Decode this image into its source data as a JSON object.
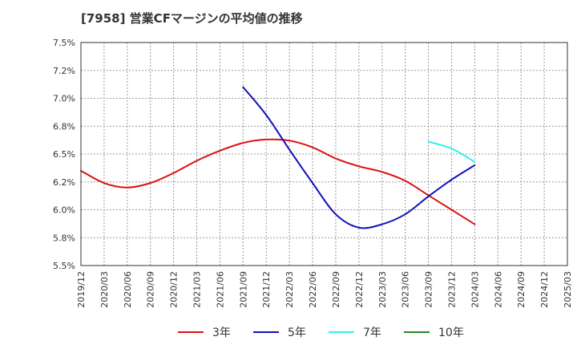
{
  "chart_data": {
    "type": "line",
    "title": "[7958]  営業CFマージンの平均値の推移",
    "xlabel": "",
    "ylabel": "",
    "x": [
      "2019/12",
      "2020/03",
      "2020/06",
      "2020/09",
      "2020/12",
      "2021/03",
      "2021/06",
      "2021/09",
      "2021/12",
      "2022/03",
      "2022/06",
      "2022/09",
      "2022/12",
      "2023/03",
      "2023/06",
      "2023/09",
      "2023/12",
      "2024/03",
      "2024/06",
      "2024/09",
      "2024/12",
      "2025/03"
    ],
    "y_ticks": [
      "7.5%",
      "7.2%",
      "7.0%",
      "6.8%",
      "6.5%",
      "6.2%",
      "6.0%",
      "5.8%",
      "5.5%"
    ],
    "ylim": [
      5.5,
      7.5
    ],
    "grid": true,
    "legend_position": "bottom",
    "series": [
      {
        "name": "3年",
        "color": "#dd1111",
        "values": [
          6.35,
          6.24,
          6.2,
          6.24,
          6.33,
          6.44,
          6.53,
          6.6,
          6.63,
          6.62,
          6.56,
          6.46,
          6.39,
          6.34,
          6.26,
          6.13,
          6.0,
          5.87,
          null,
          null,
          null,
          null
        ]
      },
      {
        "name": "5年",
        "color": "#1111bb",
        "values": [
          null,
          null,
          null,
          null,
          null,
          null,
          null,
          7.1,
          6.85,
          6.54,
          6.24,
          5.96,
          5.84,
          5.87,
          5.96,
          6.12,
          6.27,
          6.4,
          null,
          null,
          null,
          null
        ]
      },
      {
        "name": "7年",
        "color": "#33eeee",
        "values": [
          null,
          null,
          null,
          null,
          null,
          null,
          null,
          null,
          null,
          null,
          null,
          null,
          null,
          null,
          null,
          6.61,
          6.55,
          6.43,
          null,
          null,
          null,
          null
        ]
      },
      {
        "name": "10年",
        "color": "#228822",
        "values": [
          null,
          null,
          null,
          null,
          null,
          null,
          null,
          null,
          null,
          null,
          null,
          null,
          null,
          null,
          null,
          null,
          null,
          null,
          null,
          null,
          null,
          null
        ]
      }
    ]
  }
}
